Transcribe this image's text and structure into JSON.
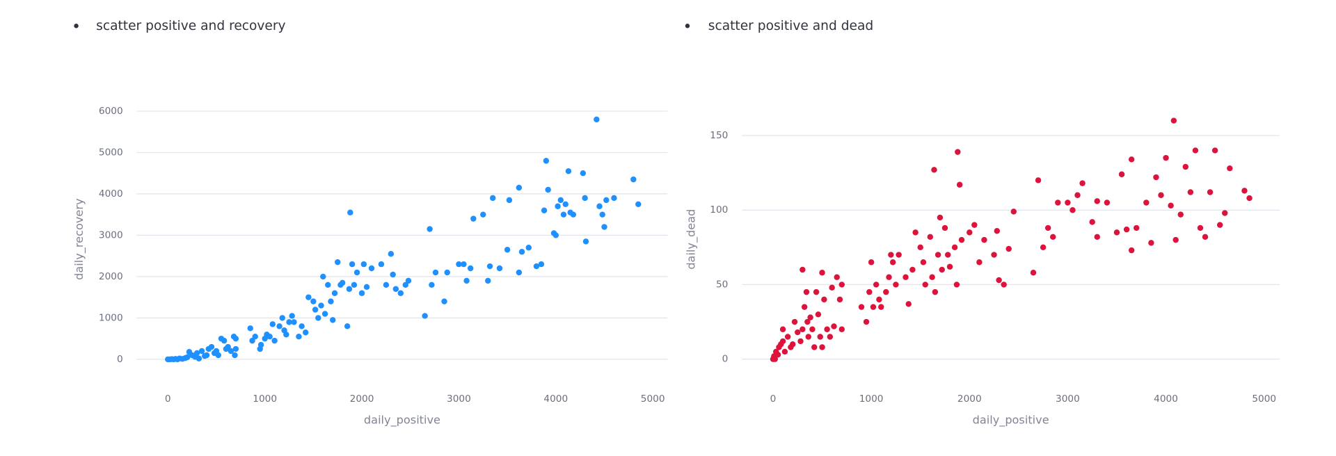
{
  "chart_data": [
    {
      "type": "scatter",
      "title": "scatter positive and recovery",
      "xlabel": "daily_positive",
      "ylabel": "daily_recovery",
      "color": "#1e90ff",
      "xlim": [
        -321,
        5152
      ],
      "ylim": [
        -500,
        6600
      ],
      "xticks": [
        0,
        1000,
        2000,
        3000,
        4000,
        5000
      ],
      "yticks": [
        0,
        1000,
        2000,
        3000,
        4000,
        5000,
        6000
      ],
      "grid": true,
      "x": [
        0,
        20,
        40,
        60,
        80,
        100,
        120,
        150,
        180,
        200,
        220,
        250,
        280,
        300,
        320,
        350,
        380,
        400,
        420,
        450,
        480,
        500,
        520,
        550,
        580,
        600,
        620,
        650,
        680,
        690,
        700,
        700,
        850,
        870,
        900,
        950,
        960,
        1000,
        1020,
        1050,
        1080,
        1100,
        1150,
        1180,
        1200,
        1220,
        1250,
        1280,
        1300,
        1350,
        1380,
        1420,
        1450,
        1500,
        1520,
        1550,
        1580,
        1600,
        1620,
        1650,
        1680,
        1700,
        1720,
        1750,
        1780,
        1800,
        1850,
        1870,
        1880,
        1900,
        1920,
        1950,
        2000,
        2020,
        2050,
        2100,
        2200,
        2250,
        2300,
        2320,
        2350,
        2400,
        2450,
        2480,
        2650,
        2700,
        2720,
        2760,
        2850,
        2880,
        3000,
        3050,
        3080,
        3120,
        3150,
        3250,
        3300,
        3320,
        3350,
        3420,
        3500,
        3520,
        3620,
        3620,
        3650,
        3720,
        3800,
        3850,
        3880,
        3900,
        3920,
        3980,
        4000,
        4020,
        4050,
        4080,
        4100,
        4130,
        4150,
        4180,
        4280,
        4300,
        4310,
        4420,
        4450,
        4480,
        4500,
        4520,
        4600,
        4800,
        4850
      ],
      "values": [
        0,
        0,
        5,
        0,
        10,
        0,
        20,
        10,
        30,
        50,
        180,
        100,
        60,
        150,
        20,
        200,
        80,
        100,
        250,
        300,
        150,
        200,
        100,
        500,
        450,
        250,
        300,
        200,
        550,
        100,
        500,
        250,
        750,
        450,
        550,
        250,
        350,
        500,
        600,
        550,
        850,
        450,
        800,
        1000,
        700,
        600,
        900,
        1050,
        900,
        550,
        800,
        650,
        1500,
        1400,
        1200,
        1000,
        1300,
        2000,
        1100,
        1800,
        1400,
        950,
        1600,
        2350,
        1800,
        1850,
        800,
        1700,
        3550,
        2300,
        1800,
        2100,
        1600,
        2300,
        1750,
        2200,
        2300,
        1800,
        2550,
        2050,
        1700,
        1600,
        1800,
        1900,
        1050,
        3150,
        1800,
        2100,
        1400,
        2100,
        2300,
        2300,
        1900,
        2200,
        3400,
        3500,
        1900,
        2250,
        3900,
        2200,
        2650,
        3850,
        2100,
        4150,
        2600,
        2700,
        2250,
        2300,
        3600,
        4800,
        4100,
        3050,
        3000,
        3700,
        3850,
        3500,
        3750,
        4550,
        3550,
        3500,
        4500,
        3900,
        2850,
        5800,
        3700,
        3500,
        3200,
        3850,
        3900,
        4350,
        3750
      ]
    },
    {
      "type": "scatter",
      "title": "scatter positive and dead",
      "xlabel": "daily_positive",
      "ylabel": "daily_dead",
      "color": "#dc143c",
      "xlim": [
        -317,
        5158
      ],
      "ylim": [
        -14,
        183
      ],
      "xticks": [
        0,
        1000,
        2000,
        3000,
        4000,
        5000
      ],
      "yticks": [
        0,
        50,
        100,
        150
      ],
      "grid": true,
      "x": [
        0,
        10,
        20,
        30,
        50,
        60,
        80,
        100,
        100,
        120,
        150,
        180,
        200,
        220,
        250,
        280,
        300,
        300,
        320,
        340,
        350,
        360,
        380,
        400,
        420,
        440,
        460,
        480,
        500,
        500,
        520,
        550,
        580,
        600,
        620,
        650,
        680,
        700,
        700,
        900,
        950,
        980,
        1000,
        1020,
        1050,
        1080,
        1100,
        1150,
        1180,
        1200,
        1220,
        1250,
        1280,
        1350,
        1380,
        1420,
        1450,
        1500,
        1530,
        1550,
        1600,
        1620,
        1640,
        1650,
        1680,
        1700,
        1720,
        1750,
        1780,
        1800,
        1850,
        1870,
        1880,
        1900,
        1920,
        2000,
        2050,
        2100,
        2150,
        2250,
        2280,
        2300,
        2350,
        2400,
        2450,
        2650,
        2700,
        2750,
        2800,
        2850,
        2900,
        3000,
        3050,
        3100,
        3150,
        3250,
        3300,
        3300,
        3400,
        3500,
        3550,
        3600,
        3650,
        3650,
        3700,
        3800,
        3850,
        3900,
        3950,
        4000,
        4050,
        4080,
        4100,
        4150,
        4200,
        4250,
        4300,
        4350,
        4400,
        4450,
        4500,
        4550,
        4600,
        4650,
        4800,
        4850
      ],
      "values": [
        0,
        2,
        0,
        5,
        3,
        8,
        10,
        12,
        20,
        5,
        15,
        8,
        10,
        25,
        18,
        12,
        20,
        60,
        35,
        45,
        25,
        15,
        28,
        20,
        8,
        45,
        30,
        15,
        58,
        8,
        40,
        20,
        15,
        48,
        22,
        55,
        40,
        50,
        20,
        35,
        25,
        45,
        65,
        35,
        50,
        40,
        35,
        45,
        55,
        70,
        65,
        50,
        70,
        55,
        37,
        60,
        85,
        75,
        65,
        50,
        82,
        55,
        127,
        45,
        70,
        95,
        60,
        88,
        70,
        62,
        75,
        50,
        139,
        117,
        80,
        85,
        90,
        65,
        80,
        70,
        86,
        53,
        50,
        74,
        99,
        58,
        120,
        75,
        88,
        82,
        105,
        105,
        100,
        110,
        118,
        92,
        82,
        106,
        105,
        85,
        124,
        87,
        134,
        73,
        88,
        105,
        78,
        122,
        110,
        135,
        103,
        160,
        80,
        97,
        129,
        112,
        140,
        88,
        82,
        112,
        140,
        90,
        98,
        128,
        113,
        108
      ]
    }
  ]
}
